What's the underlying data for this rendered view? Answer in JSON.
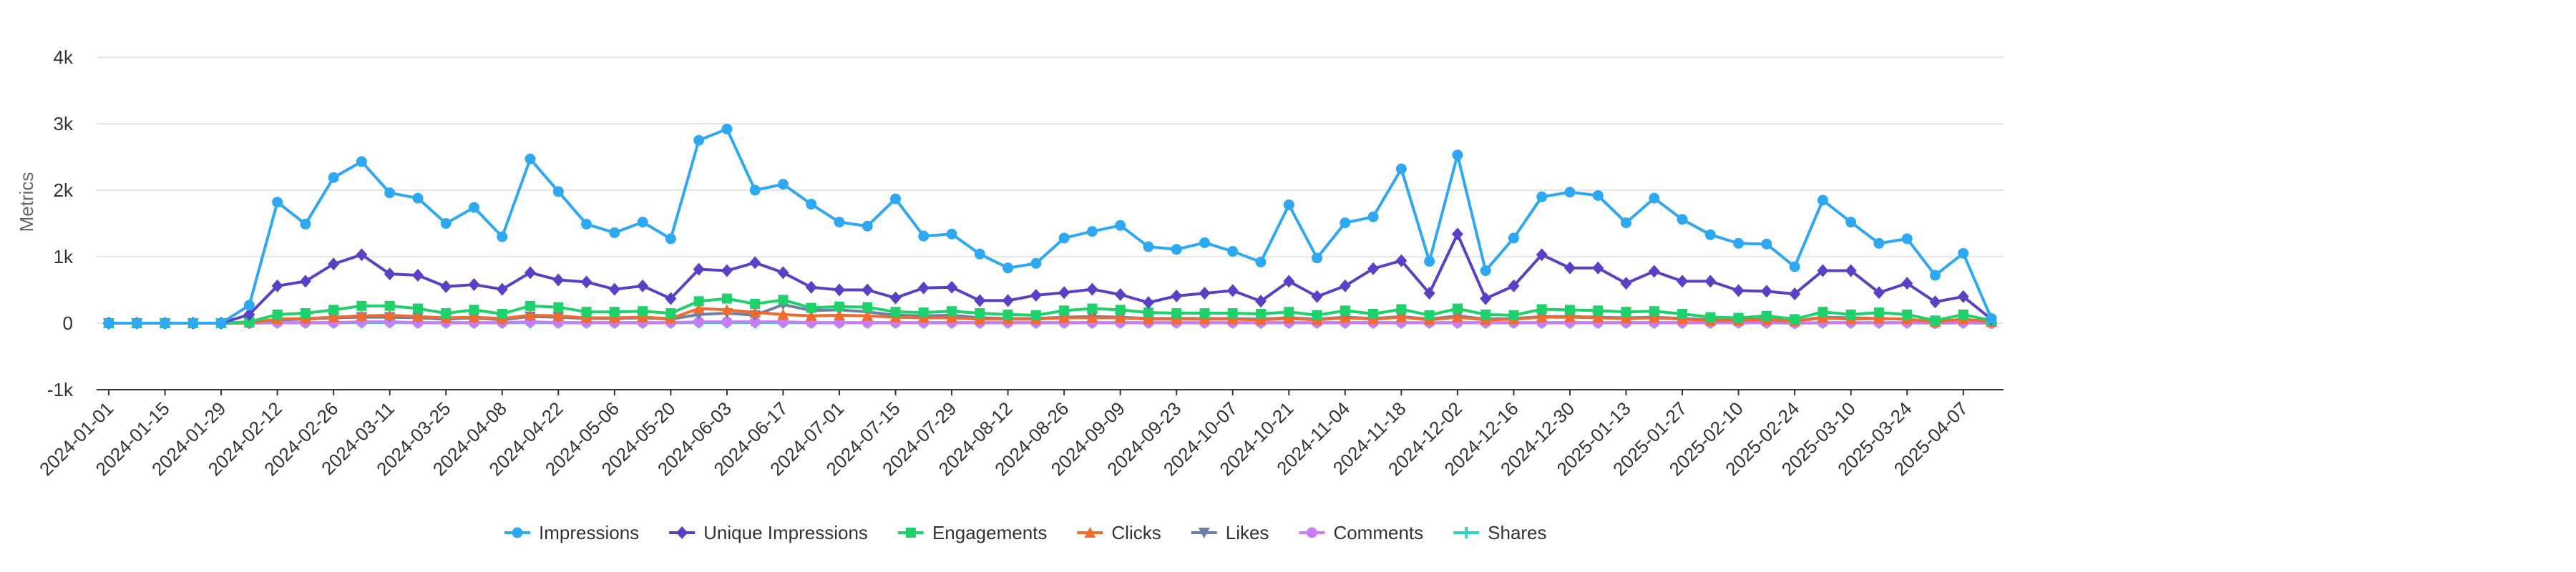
{
  "chart_data": {
    "type": "line",
    "title": "",
    "xlabel": "",
    "ylabel": "Metrics",
    "ylim": [
      -1000,
      4000
    ],
    "yticks": [
      -1000,
      0,
      1000,
      2000,
      3000,
      4000
    ],
    "ytick_labels": [
      "-1k",
      "0",
      "1k",
      "2k",
      "3k",
      "4k"
    ],
    "grid": true,
    "legend_position": "bottom",
    "xtick_labels": [
      "2024-01-01",
      "2024-01-15",
      "2024-01-29",
      "2024-02-12",
      "2024-02-26",
      "2024-03-11",
      "2024-03-25",
      "2024-04-08",
      "2024-04-22",
      "2024-05-06",
      "2024-05-20",
      "2024-06-03",
      "2024-06-17",
      "2024-07-01",
      "2024-07-15",
      "2024-07-29",
      "2024-08-12",
      "2024-08-26",
      "2024-09-09",
      "2024-09-23",
      "2024-10-07",
      "2024-10-21",
      "2024-11-04",
      "2024-11-18",
      "2024-12-02",
      "2024-12-16",
      "2024-12-30",
      "2025-01-13",
      "2025-01-27",
      "2025-02-10",
      "2025-02-24",
      "2025-03-10",
      "2025-03-24",
      "2025-04-07"
    ],
    "x": [
      "2024-01-01",
      "2024-01-08",
      "2024-01-15",
      "2024-01-22",
      "2024-01-29",
      "2024-02-05",
      "2024-02-12",
      "2024-02-19",
      "2024-02-26",
      "2024-03-04",
      "2024-03-11",
      "2024-03-18",
      "2024-03-25",
      "2024-04-01",
      "2024-04-08",
      "2024-04-15",
      "2024-04-22",
      "2024-04-29",
      "2024-05-06",
      "2024-05-13",
      "2024-05-20",
      "2024-05-27",
      "2024-06-03",
      "2024-06-10",
      "2024-06-17",
      "2024-06-24",
      "2024-07-01",
      "2024-07-08",
      "2024-07-15",
      "2024-07-22",
      "2024-07-29",
      "2024-08-05",
      "2024-08-12",
      "2024-08-19",
      "2024-08-26",
      "2024-09-02",
      "2024-09-09",
      "2024-09-16",
      "2024-09-23",
      "2024-09-30",
      "2024-10-07",
      "2024-10-14",
      "2024-10-21",
      "2024-10-28",
      "2024-11-04",
      "2024-11-11",
      "2024-11-18",
      "2024-11-25",
      "2024-12-02",
      "2024-12-09",
      "2024-12-16",
      "2024-12-23",
      "2024-12-30",
      "2025-01-06",
      "2025-01-13",
      "2025-01-20",
      "2025-01-27",
      "2025-02-03",
      "2025-02-10",
      "2025-02-17",
      "2025-02-24",
      "2025-03-03",
      "2025-03-10",
      "2025-03-17",
      "2025-03-24",
      "2025-03-31",
      "2025-04-07",
      "2025-04-14"
    ],
    "series": [
      {
        "name": "Impressions",
        "color": "#2ea8f2",
        "marker": "circle",
        "values": [
          0,
          0,
          0,
          0,
          0,
          270,
          1820,
          1490,
          2190,
          2430,
          1960,
          1880,
          1500,
          1740,
          1300,
          2470,
          1980,
          1490,
          1360,
          1520,
          1270,
          2750,
          2920,
          2000,
          2090,
          1790,
          1520,
          1460,
          1870,
          1310,
          1340,
          1040,
          830,
          900,
          1280,
          1380,
          1470,
          1150,
          1110,
          1210,
          1080,
          920,
          1780,
          980,
          1510,
          1600,
          2320,
          930,
          2530,
          790,
          1280,
          1900,
          1970,
          1920,
          1510,
          1880,
          1560,
          1330,
          1200,
          1190,
          850,
          1850,
          1520,
          1200,
          1270,
          720,
          1050,
          70
        ]
      },
      {
        "name": "Unique Impressions",
        "color": "#5b3fc4",
        "marker": "diamond",
        "values": [
          0,
          0,
          0,
          0,
          0,
          130,
          560,
          630,
          890,
          1030,
          740,
          720,
          550,
          580,
          510,
          760,
          650,
          620,
          510,
          560,
          370,
          810,
          790,
          910,
          760,
          540,
          500,
          500,
          380,
          530,
          540,
          340,
          340,
          420,
          460,
          510,
          430,
          310,
          410,
          450,
          490,
          330,
          630,
          400,
          560,
          820,
          940,
          450,
          1340,
          370,
          560,
          1030,
          830,
          830,
          600,
          780,
          630,
          630,
          490,
          480,
          440,
          790,
          790,
          460,
          600,
          320,
          400,
          60
        ]
      },
      {
        "name": "Engagements",
        "color": "#1fd16a",
        "marker": "square",
        "values": [
          0,
          0,
          0,
          0,
          0,
          20,
          130,
          150,
          200,
          260,
          260,
          220,
          150,
          200,
          140,
          260,
          240,
          170,
          170,
          180,
          150,
          330,
          370,
          290,
          350,
          230,
          250,
          240,
          170,
          160,
          180,
          150,
          130,
          120,
          190,
          220,
          200,
          160,
          150,
          150,
          150,
          140,
          170,
          120,
          190,
          140,
          210,
          120,
          220,
          130,
          120,
          210,
          200,
          190,
          170,
          180,
          140,
          90,
          80,
          110,
          60,
          170,
          130,
          160,
          130,
          40,
          130,
          40
        ]
      },
      {
        "name": "Clicks",
        "color": "#f26b2e",
        "marker": "triangle",
        "values": [
          0,
          0,
          0,
          0,
          0,
          10,
          60,
          70,
          90,
          110,
          120,
          100,
          80,
          90,
          70,
          120,
          110,
          80,
          80,
          90,
          70,
          220,
          200,
          160,
          130,
          110,
          120,
          110,
          90,
          80,
          80,
          60,
          60,
          60,
          80,
          80,
          80,
          60,
          60,
          60,
          60,
          50,
          70,
          50,
          80,
          60,
          90,
          50,
          90,
          50,
          60,
          90,
          90,
          80,
          70,
          80,
          60,
          40,
          40,
          50,
          30,
          80,
          60,
          70,
          60,
          20,
          60,
          20
        ]
      },
      {
        "name": "Likes",
        "color": "#6b7fa8",
        "marker": "triangle-down",
        "values": [
          0,
          0,
          0,
          0,
          0,
          10,
          50,
          60,
          80,
          90,
          90,
          80,
          60,
          80,
          50,
          100,
          90,
          70,
          70,
          80,
          60,
          130,
          150,
          120,
          280,
          190,
          200,
          170,
          120,
          110,
          120,
          80,
          70,
          70,
          90,
          100,
          90,
          70,
          70,
          70,
          70,
          60,
          80,
          60,
          90,
          70,
          100,
          60,
          110,
          60,
          70,
          100,
          100,
          90,
          80,
          90,
          70,
          50,
          50,
          60,
          30,
          90,
          80,
          70,
          60,
          20,
          60,
          20
        ]
      },
      {
        "name": "Comments",
        "color": "#c77df5",
        "marker": "circle",
        "values": [
          0,
          0,
          0,
          0,
          0,
          0,
          10,
          10,
          10,
          20,
          20,
          10,
          10,
          10,
          10,
          20,
          10,
          10,
          10,
          10,
          10,
          20,
          20,
          20,
          20,
          10,
          10,
          10,
          10,
          10,
          10,
          10,
          10,
          10,
          10,
          10,
          10,
          10,
          10,
          10,
          10,
          10,
          10,
          10,
          10,
          10,
          10,
          10,
          10,
          10,
          10,
          10,
          10,
          10,
          10,
          10,
          10,
          10,
          10,
          10,
          0,
          10,
          10,
          10,
          10,
          0,
          10,
          0
        ]
      },
      {
        "name": "Shares",
        "color": "#2ed1c4",
        "marker": "plus",
        "values": [
          0,
          0,
          0,
          0,
          0,
          0,
          5,
          5,
          5,
          10,
          10,
          5,
          5,
          5,
          5,
          10,
          5,
          5,
          5,
          5,
          5,
          10,
          10,
          10,
          10,
          5,
          5,
          5,
          5,
          5,
          5,
          5,
          5,
          5,
          5,
          5,
          5,
          5,
          5,
          5,
          5,
          5,
          5,
          5,
          5,
          5,
          5,
          5,
          5,
          5,
          5,
          5,
          5,
          5,
          5,
          5,
          5,
          5,
          5,
          5,
          0,
          5,
          5,
          5,
          5,
          0,
          5,
          0
        ]
      }
    ]
  }
}
